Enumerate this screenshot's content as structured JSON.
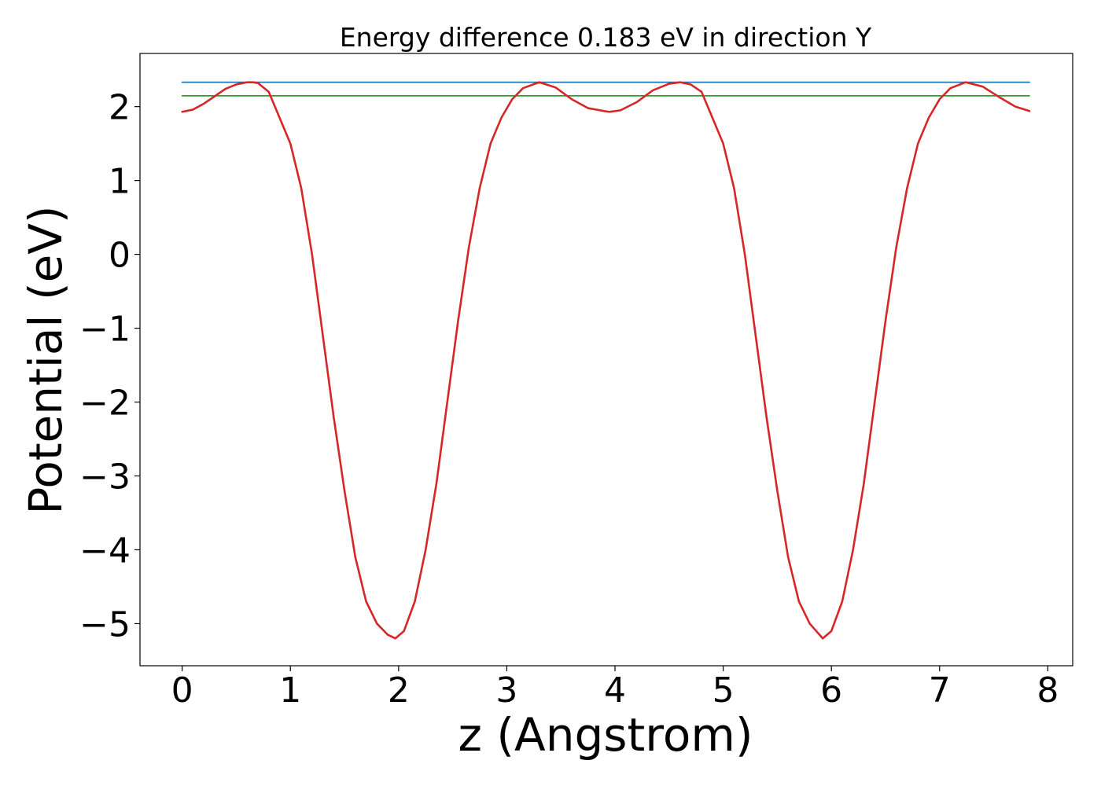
{
  "chart_data": {
    "type": "line",
    "title": "Energy difference 0.183 eV in direction Y",
    "xlabel": "z (Angstrom)",
    "ylabel": "Potential (eV)",
    "xlim": [
      -0.39,
      8.23
    ],
    "ylim": [
      -5.57,
      2.72
    ],
    "xticks": [
      0,
      1,
      2,
      3,
      4,
      5,
      6,
      7,
      8
    ],
    "xtick_labels": [
      "0",
      "1",
      "2",
      "3",
      "4",
      "5",
      "6",
      "7",
      "8"
    ],
    "yticks": [
      -5,
      -4,
      -3,
      -2,
      -1,
      0,
      1,
      2
    ],
    "ytick_labels": [
      "−5",
      "−4",
      "−3",
      "−2",
      "−1",
      "0",
      "1",
      "2"
    ],
    "grid": false,
    "legend": "none",
    "series": [
      {
        "color": "#d62728",
        "style": "line",
        "x": [
          0,
          0.1,
          0.2,
          0.3,
          0.4,
          0.5,
          0.6,
          0.65,
          0.7,
          0.8,
          0.9,
          1.0,
          1.1,
          1.2,
          1.3,
          1.4,
          1.5,
          1.6,
          1.7,
          1.8,
          1.9,
          1.97,
          2.05,
          2.15,
          2.25,
          2.35,
          2.45,
          2.55,
          2.65,
          2.75,
          2.85,
          2.95,
          3.05,
          3.15,
          3.3,
          3.45,
          3.6,
          3.75,
          3.9,
          3.95,
          4.05,
          4.2,
          4.35,
          4.5,
          4.6,
          4.7,
          4.8,
          4.9,
          5.0,
          5.1,
          5.2,
          5.3,
          5.4,
          5.5,
          5.6,
          5.7,
          5.8,
          5.92,
          6.0,
          6.1,
          6.2,
          6.3,
          6.4,
          6.5,
          6.6,
          6.7,
          6.8,
          6.9,
          7.0,
          7.1,
          7.24,
          7.4,
          7.55,
          7.7,
          7.83
        ],
        "y": [
          1.93,
          1.96,
          2.04,
          2.14,
          2.24,
          2.3,
          2.33,
          2.33,
          2.32,
          2.2,
          1.85,
          1.5,
          0.9,
          0.0,
          -1.1,
          -2.2,
          -3.2,
          -4.1,
          -4.7,
          -5.0,
          -5.15,
          -5.2,
          -5.1,
          -4.7,
          -4.0,
          -3.1,
          -2.0,
          -0.9,
          0.1,
          0.9,
          1.5,
          1.85,
          2.1,
          2.25,
          2.33,
          2.26,
          2.1,
          1.98,
          1.94,
          1.93,
          1.95,
          2.06,
          2.22,
          2.31,
          2.33,
          2.3,
          2.2,
          1.85,
          1.5,
          0.9,
          0.0,
          -1.1,
          -2.2,
          -3.2,
          -4.1,
          -4.7,
          -5.0,
          -5.2,
          -5.1,
          -4.7,
          -4.0,
          -3.1,
          -2.0,
          -0.9,
          0.1,
          0.9,
          1.5,
          1.85,
          2.1,
          2.25,
          2.33,
          2.27,
          2.13,
          2.0,
          1.94
        ]
      },
      {
        "color": "#1f77b4",
        "style": "line",
        "x": [
          0,
          7.83
        ],
        "y": [
          2.33,
          2.33
        ]
      },
      {
        "color": "#2ca02c",
        "style": "line",
        "x": [
          0,
          7.83
        ],
        "y": [
          2.147,
          2.147
        ]
      }
    ]
  }
}
